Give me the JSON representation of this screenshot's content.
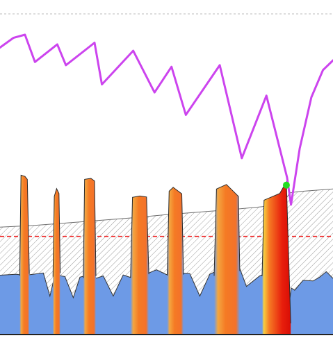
{
  "colors": {
    "purple_line": "#cc44ee",
    "spike_orange": "#f57a24",
    "spike_red": "#e81f0c",
    "spike_yellow": "#f7d040",
    "base_blue": "#6d9ae6",
    "hatch_gray": "#9a9a9a",
    "band_top": "#6e6e6e",
    "threshold_red": "#ee2222",
    "marker_green": "#22dd22",
    "axis": "#222222",
    "top_dashed": "#bbbbbb"
  },
  "chart_data": {
    "type": "area",
    "title": "",
    "xlabel": "",
    "ylabel": "",
    "xlim": [
      0,
      100
    ],
    "ylim": [
      0,
      100
    ],
    "grid": false,
    "legend": "none",
    "threshold": {
      "y": 30.6,
      "style": "dashed"
    },
    "marker": {
      "x": 86.0,
      "y": 46.6
    },
    "series": [
      {
        "kind": "line",
        "x": [
          0,
          4,
          7.5,
          10.5,
          17.2,
          19.8,
          28.4,
          30.6,
          40.0,
          46.4,
          51.5,
          55.8,
          66.0,
          72.6,
          80.0,
          86.2,
          87.4,
          90.0,
          93.5,
          97.0,
          100
        ],
        "y": [
          89.5,
          92.5,
          93.5,
          85,
          90.5,
          84,
          91,
          78,
          88.5,
          75.5,
          83.5,
          68.5,
          84,
          55,
          74.5,
          49,
          40.5,
          58,
          74,
          82.5,
          85.5
        ]
      },
      {
        "kind": "band_top",
        "x": [
          0,
          10,
          20,
          30,
          40,
          50,
          60,
          70,
          80,
          85,
          87,
          90,
          100
        ],
        "y": [
          33.5,
          34.0,
          34.8,
          35.6,
          36.4,
          37.4,
          38.2,
          39.0,
          40.0,
          40.8,
          44.2,
          44.6,
          45.4
        ]
      },
      {
        "kind": "baseline",
        "x": [
          0,
          5,
          7,
          13,
          15,
          16.5,
          19.5,
          22,
          24,
          25.5,
          29,
          31,
          34,
          37,
          40,
          44,
          47,
          50,
          54,
          57,
          60,
          63,
          65,
          69,
          72,
          74,
          78,
          80,
          83,
          86,
          87.5,
          88.5,
          91,
          94,
          96,
          98,
          100
        ],
        "y": [
          18.5,
          18.8,
          18.4,
          19.2,
          12,
          18.6,
          18.1,
          11.5,
          17.9,
          18.3,
          17.6,
          18.3,
          12,
          18.6,
          17.5,
          18.9,
          20.2,
          18.7,
          19.2,
          19.0,
          12,
          18.8,
          19.8,
          18.4,
          20.6,
          15,
          18.3,
          19.1,
          20.3,
          3.5,
          14.5,
          13.8,
          16.9,
          16.7,
          17.9,
          19.6,
          17.5
        ]
      },
      {
        "kind": "spikes",
        "x": [
          [
            5.9,
            6.3,
            7.5,
            8.2,
            8.8
          ],
          [
            15.9,
            16.3,
            17.0,
            17.7,
            18.1
          ],
          [
            25.0,
            25.4,
            27.3,
            28.4,
            28.8
          ],
          [
            39.2,
            39.8,
            42.0,
            44.0,
            44.7
          ],
          [
            50.2,
            50.8,
            52.0,
            54.6,
            55.1
          ],
          [
            64.3,
            65.0,
            68.0,
            71.6,
            72.0
          ],
          [
            78.7,
            79.3,
            84.0,
            86.0,
            87.3
          ]
        ],
        "y": [
          [
            18.4,
            49.7,
            49.3,
            48.4,
            18.9
          ],
          [
            18.0,
            43.1,
            45.5,
            44.0,
            19.2
          ],
          [
            17.6,
            48.4,
            48.7,
            47.9,
            18.2
          ],
          [
            17.7,
            42.8,
            43.2,
            42.9,
            18.8
          ],
          [
            18.4,
            44.7,
            45.9,
            43.9,
            18.7
          ],
          [
            18.3,
            45.4,
            46.8,
            43.1,
            19.8
          ],
          [
            18.2,
            41.9,
            44.0,
            47.6,
            3.5
          ]
        ]
      }
    ]
  }
}
